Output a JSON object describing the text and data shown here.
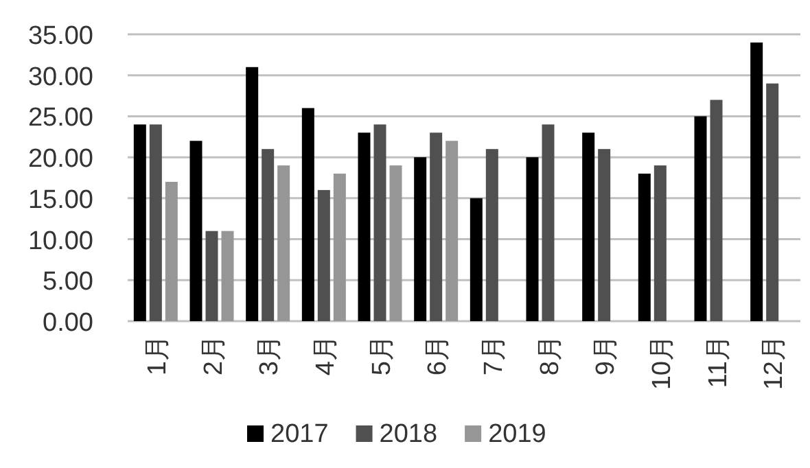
{
  "chart_data": {
    "type": "bar",
    "categories": [
      "1月",
      "2月",
      "3月",
      "4月",
      "5月",
      "6月",
      "7月",
      "8月",
      "9月",
      "10月",
      "11月",
      "12月"
    ],
    "series": [
      {
        "name": "2017",
        "color": "#000000",
        "values": [
          24,
          22,
          31,
          26,
          23,
          20,
          15,
          20,
          23,
          18,
          25,
          34
        ]
      },
      {
        "name": "2018",
        "color": "#505050",
        "values": [
          24,
          11,
          21,
          16,
          24,
          23,
          21,
          24,
          21,
          19,
          27,
          29
        ]
      },
      {
        "name": "2019",
        "color": "#969696",
        "values": [
          17,
          11,
          19,
          18,
          19,
          22,
          null,
          null,
          null,
          null,
          null,
          null
        ]
      }
    ],
    "ylim": [
      0,
      35
    ],
    "yticks": [
      {
        "value": 0,
        "label": "0.00"
      },
      {
        "value": 5,
        "label": "5.00"
      },
      {
        "value": 10,
        "label": "10.00"
      },
      {
        "value": 15,
        "label": "15.00"
      },
      {
        "value": 20,
        "label": "20.00"
      },
      {
        "value": 25,
        "label": "25.00"
      },
      {
        "value": 30,
        "label": "30.00"
      },
      {
        "value": 35,
        "label": "35.00"
      }
    ],
    "grid": "y",
    "legend": "bottom"
  }
}
